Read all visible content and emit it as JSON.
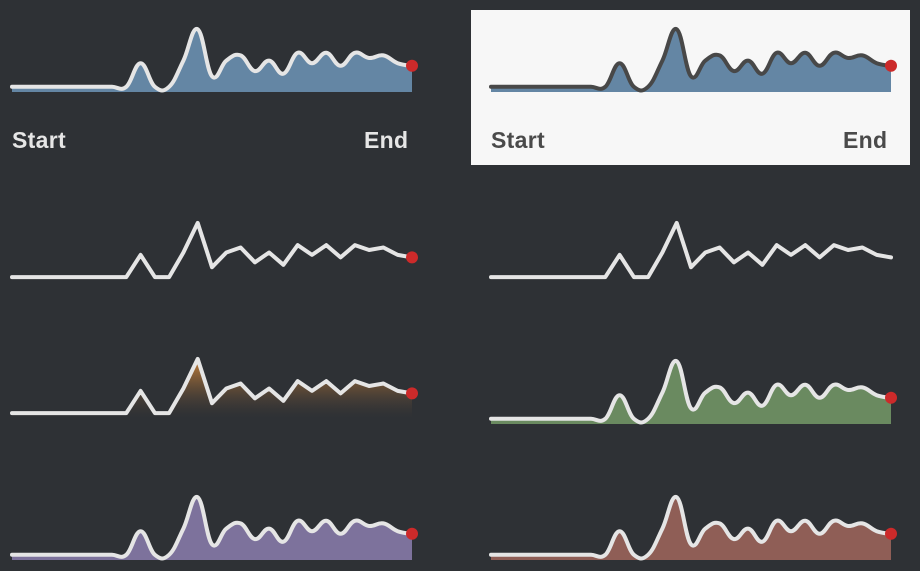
{
  "chart_data": {
    "type": "area",
    "title": "",
    "x": [
      0,
      1,
      2,
      3,
      4,
      5,
      6,
      7,
      8,
      9,
      10,
      11,
      12,
      13,
      14,
      15,
      16,
      17,
      18,
      19,
      20,
      21,
      22,
      23,
      24,
      25,
      26,
      27,
      28
    ],
    "values": [
      2,
      2,
      2,
      2,
      2,
      2,
      2,
      2,
      2,
      11,
      2,
      2,
      12,
      24,
      6,
      12,
      14,
      8,
      12,
      7,
      15,
      11,
      15,
      10,
      15,
      13,
      14,
      11,
      10
    ],
    "ylim": [
      0,
      26
    ],
    "colors": {
      "line_light": "#e5e5e5",
      "line_dark": "#484848",
      "endpoint": "#cc2a2a",
      "blue": "#6486a4",
      "orange": "#d2863a",
      "green": "#6a8a60",
      "purple": "#7d729c",
      "red": "#8f5e56"
    },
    "variants": [
      {
        "id": "smooth-blue-labeled",
        "style": "smooth",
        "fill": "blue",
        "theme": "dark",
        "endpoint": true
      },
      {
        "id": "smooth-blue-labeled-light",
        "style": "smooth",
        "fill": "blue",
        "theme": "light",
        "endpoint": true
      },
      {
        "id": "line-endpoint",
        "style": "linear",
        "fill": "none",
        "theme": "dark",
        "endpoint": true
      },
      {
        "id": "line-plain",
        "style": "linear",
        "fill": "none",
        "theme": "dark",
        "endpoint": false
      },
      {
        "id": "line-orange-gradient",
        "style": "linear",
        "fill": "orange-gradient",
        "theme": "dark",
        "endpoint": true
      },
      {
        "id": "smooth-green",
        "style": "smooth",
        "fill": "green",
        "theme": "dark",
        "endpoint": true
      },
      {
        "id": "smooth-purple",
        "style": "smooth",
        "fill": "purple",
        "theme": "dark",
        "endpoint": true
      },
      {
        "id": "smooth-red",
        "style": "smooth",
        "fill": "red",
        "theme": "dark",
        "endpoint": true
      }
    ],
    "labels": {
      "start": "Start",
      "end": "End"
    }
  }
}
